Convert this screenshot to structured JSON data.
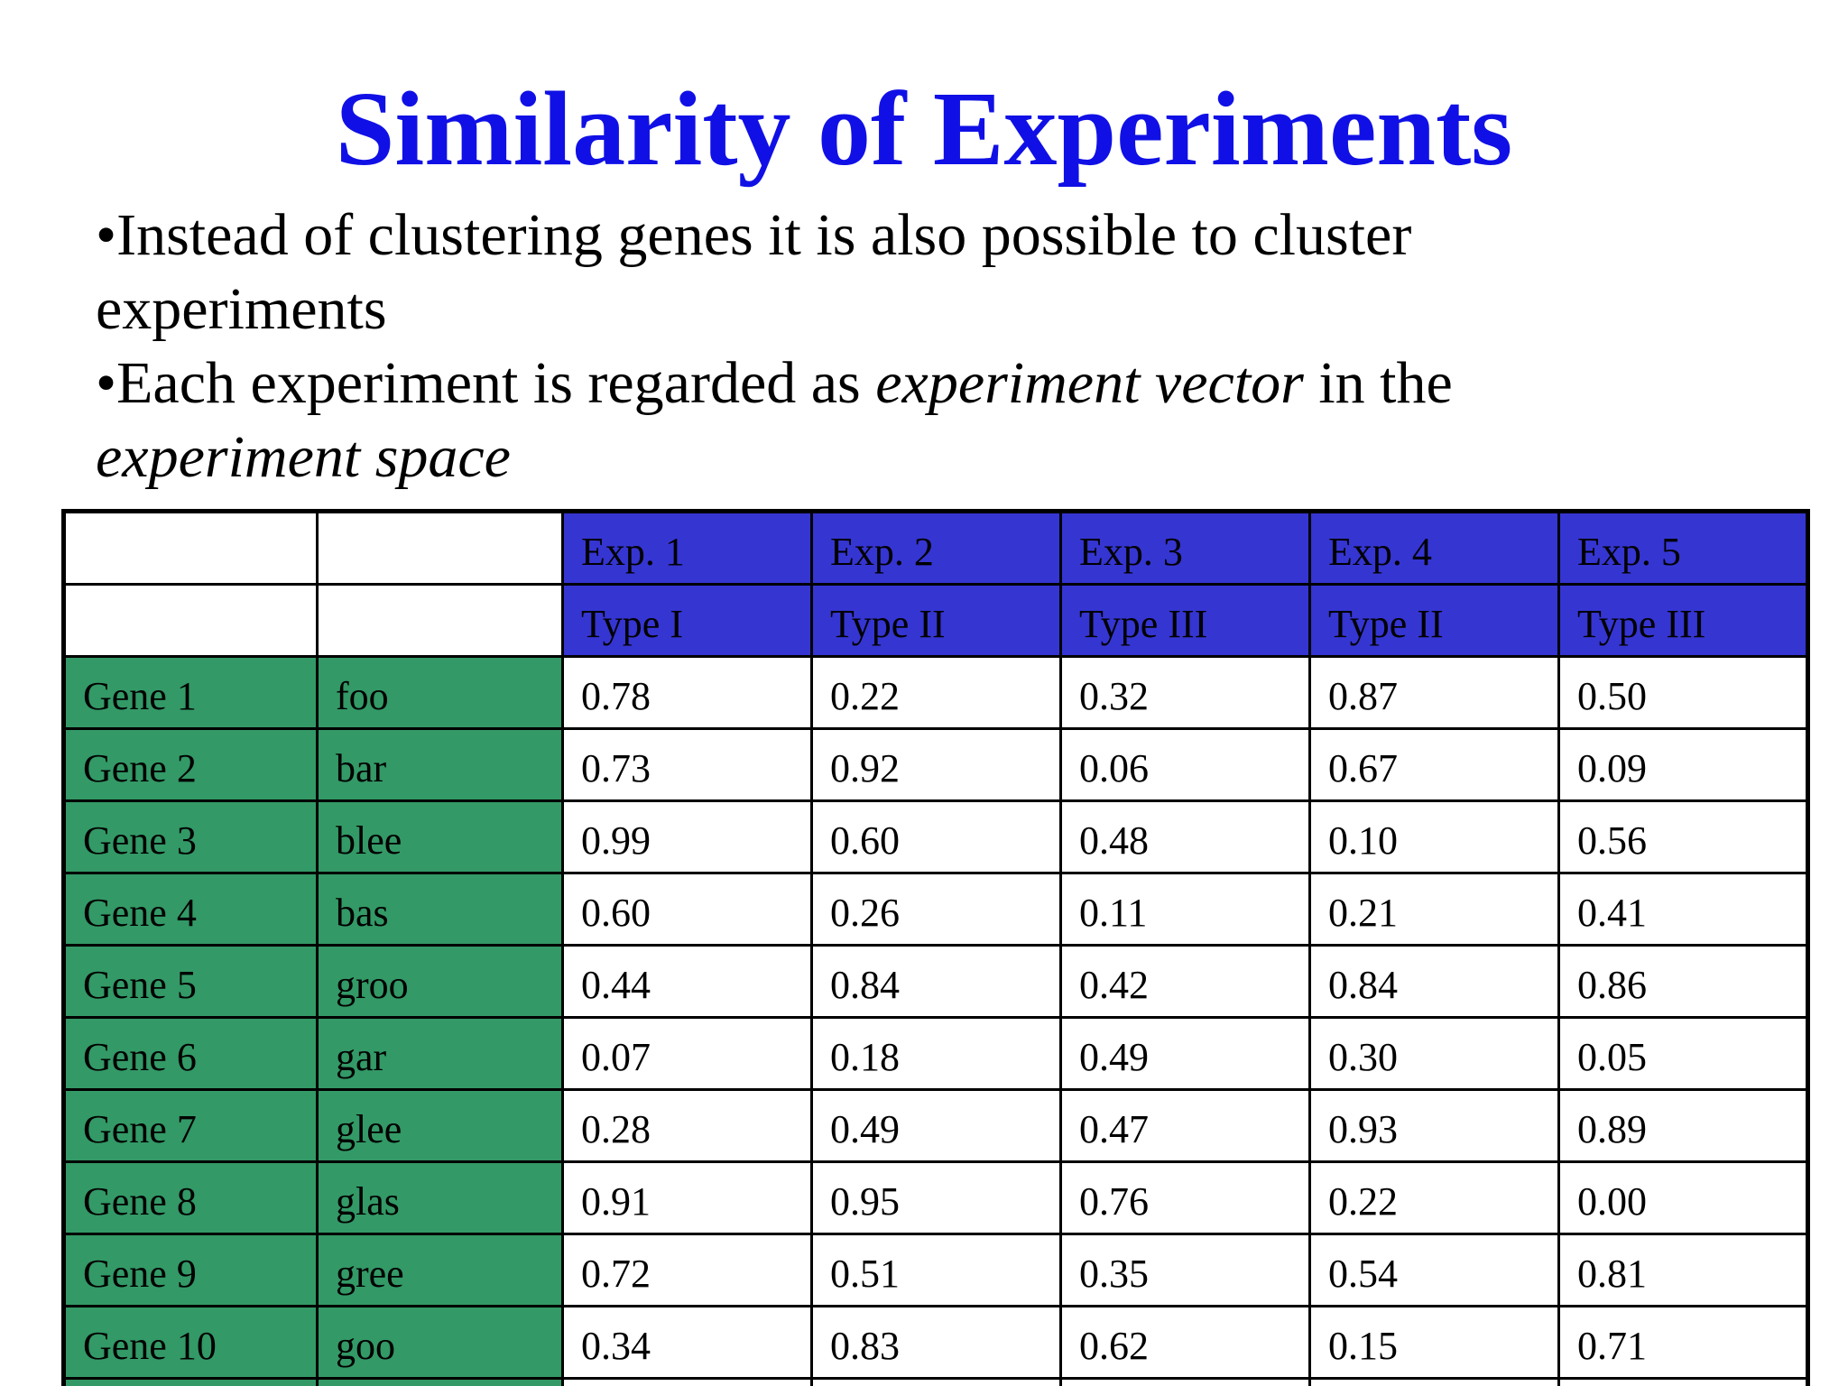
{
  "title": "Similarity of Experiments",
  "bullets": [
    {
      "line1": "•Instead of clustering genes it is also possible to cluster",
      "line2": "experiments"
    },
    {
      "line1_pre": "•Each experiment is regarded as ",
      "line1_em": "experiment vector",
      "line1_post": " in the",
      "line2_em": "experiment space"
    }
  ],
  "table": {
    "experiments": [
      "Exp. 1",
      "Exp. 2",
      "Exp. 3",
      "Exp. 4",
      "Exp. 5"
    ],
    "types": [
      "Type I",
      "Type II",
      "Type III",
      "Type II",
      "Type III"
    ],
    "rows": [
      {
        "gene": "Gene 1",
        "name": "foo",
        "values": [
          "0.78",
          "0.22",
          "0.32",
          "0.87",
          "0.50"
        ]
      },
      {
        "gene": "Gene 2",
        "name": "bar",
        "values": [
          "0.73",
          "0.92",
          "0.06",
          "0.67",
          "0.09"
        ]
      },
      {
        "gene": "Gene 3",
        "name": "blee",
        "values": [
          "0.99",
          "0.60",
          "0.48",
          "0.10",
          "0.56"
        ]
      },
      {
        "gene": "Gene 4",
        "name": "bas",
        "values": [
          "0.60",
          "0.26",
          "0.11",
          "0.21",
          "0.41"
        ]
      },
      {
        "gene": "Gene 5",
        "name": "groo",
        "values": [
          "0.44",
          "0.84",
          "0.42",
          "0.84",
          "0.86"
        ]
      },
      {
        "gene": "Gene 6",
        "name": "gar",
        "values": [
          "0.07",
          "0.18",
          "0.49",
          "0.30",
          "0.05"
        ]
      },
      {
        "gene": "Gene 7",
        "name": "glee",
        "values": [
          "0.28",
          "0.49",
          "0.47",
          "0.93",
          "0.89"
        ]
      },
      {
        "gene": "Gene 8",
        "name": "glas",
        "values": [
          "0.91",
          "0.95",
          "0.76",
          "0.22",
          "0.00"
        ]
      },
      {
        "gene": "Gene 9",
        "name": "gree",
        "values": [
          "0.72",
          "0.51",
          "0.35",
          "0.54",
          "0.81"
        ]
      },
      {
        "gene": "Gene 10",
        "name": "goo",
        "values": [
          "0.34",
          "0.83",
          "0.62",
          "0.15",
          "0.71"
        ]
      }
    ],
    "ellipsis": "…"
  },
  "colors": {
    "title": "#1010e6",
    "header_fill": "#3535d2",
    "gene_fill": "#339966"
  }
}
